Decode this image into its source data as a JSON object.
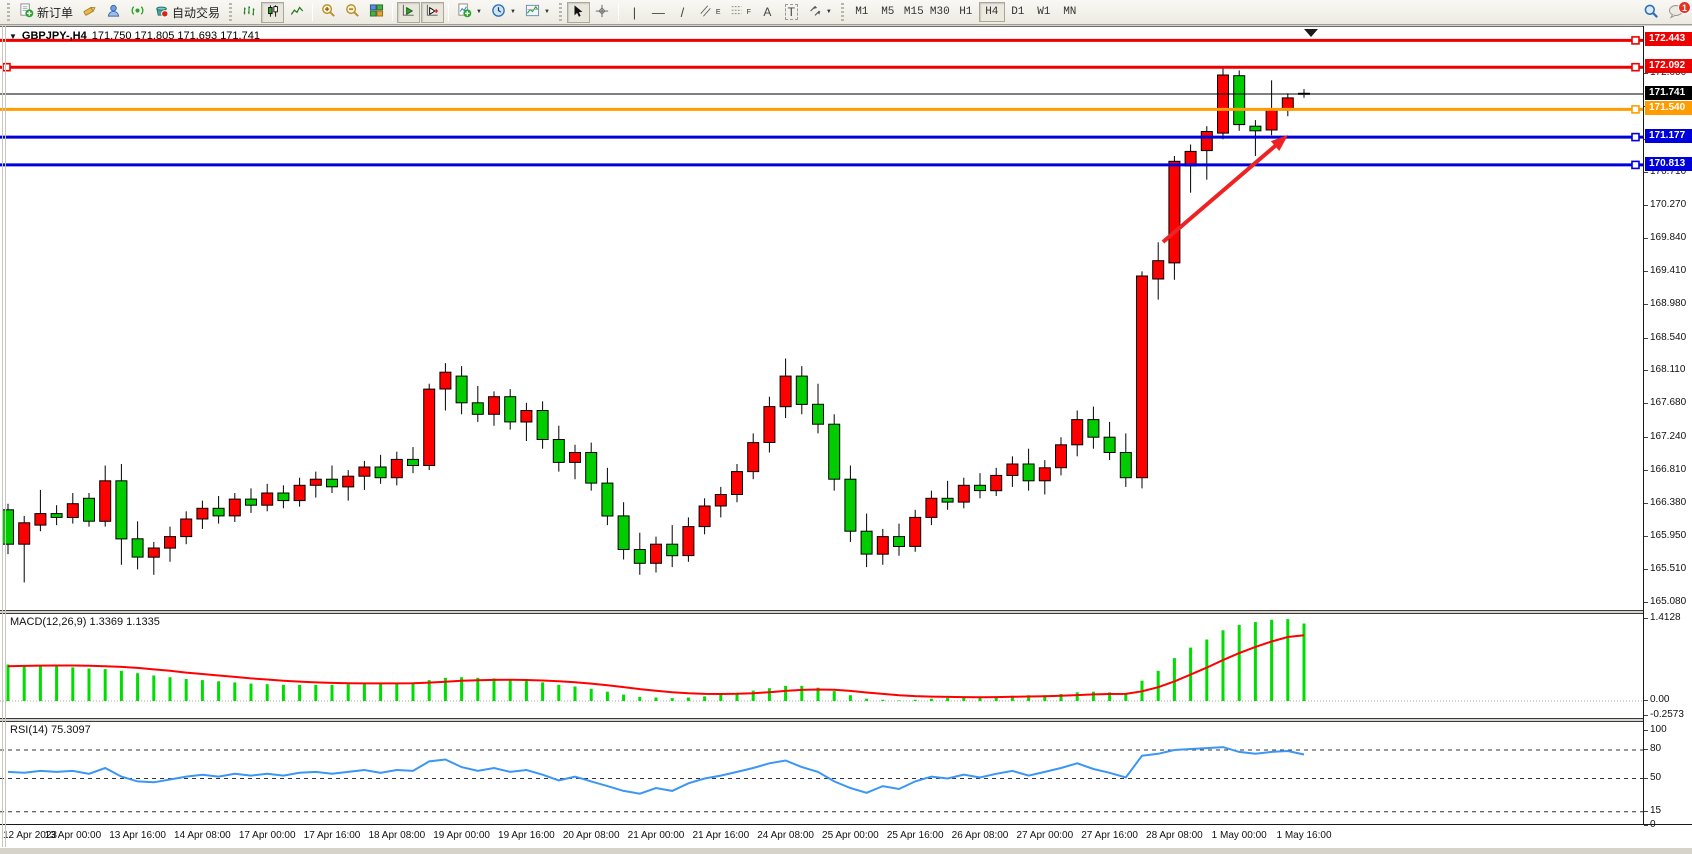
{
  "toolbar": {
    "new_order_label": "新订单",
    "autotrading_label": "自动交易",
    "timeframes": [
      "M1",
      "M5",
      "M15",
      "M30",
      "H1",
      "H4",
      "D1",
      "W1",
      "MN"
    ],
    "active_timeframe": "H4",
    "notification_badge": "1",
    "tools": {
      "vline": "|",
      "hline": "—",
      "trendline": "/",
      "text_tool": "A",
      "label_tool": "T",
      "channel_letter": "E",
      "fibo_letter": "F",
      "crosshair": "+"
    }
  },
  "chart_window": {
    "symbol_title": "GBPJPY-,H4",
    "ohlc_title": "171.750 171.805 171.693 171.741",
    "macd_label": "MACD(12,26,9) 1.3369 1.1335",
    "rsi_label": "RSI(14) 75.3097"
  },
  "chart_data": {
    "type": "candlestick",
    "symbol": "GBPJPY-",
    "timeframe": "H4",
    "current_ohlc": {
      "open": "171.750",
      "high": "171.805",
      "low": "171.693",
      "close": "171.741"
    },
    "up_color": "#ff0000",
    "down_color": "#00cc00",
    "price_ticks": [
      "172.000",
      "171.570",
      "171.140",
      "170.710",
      "170.270",
      "169.840",
      "169.410",
      "168.980",
      "168.540",
      "168.110",
      "167.680",
      "167.240",
      "166.810",
      "166.380",
      "165.950",
      "165.510",
      "165.080"
    ],
    "x_labels": [
      "12 Apr 2023",
      "13 Apr 00:00",
      "13 Apr 16:00",
      "14 Apr 08:00",
      "17 Apr 00:00",
      "17 Apr 16:00",
      "18 Apr 08:00",
      "19 Apr 00:00",
      "19 Apr 16:00",
      "20 Apr 08:00",
      "21 Apr 00:00",
      "21 Apr 16:00",
      "24 Apr 08:00",
      "25 Apr 00:00",
      "25 Apr 16:00",
      "26 Apr 08:00",
      "27 Apr 00:00",
      "27 Apr 16:00",
      "28 Apr 08:00",
      "1 May 00:00",
      "1 May 16:00"
    ],
    "hlines": [
      {
        "price": 172.443,
        "label": "172.443",
        "color": "#ee0000"
      },
      {
        "price": 172.092,
        "label": "172.092",
        "color": "#ee0000"
      },
      {
        "price": 171.54,
        "label": "171.540",
        "color": "#ff9c00"
      },
      {
        "price": 171.177,
        "label": "171.177",
        "color": "#0000dd"
      },
      {
        "price": 170.813,
        "label": "170.813",
        "color": "#0000dd"
      }
    ],
    "current_price": {
      "value": 171.741,
      "label": "171.741",
      "color": "#000000"
    },
    "candles": [
      [
        166.3,
        166.38,
        165.72,
        165.85
      ],
      [
        165.85,
        166.22,
        165.35,
        166.13
      ],
      [
        166.1,
        166.56,
        166.02,
        166.25
      ],
      [
        166.25,
        166.36,
        166.1,
        166.2
      ],
      [
        166.2,
        166.52,
        166.12,
        166.38
      ],
      [
        166.45,
        166.52,
        166.08,
        166.15
      ],
      [
        166.15,
        166.88,
        166.08,
        166.68
      ],
      [
        166.68,
        166.9,
        165.58,
        165.92
      ],
      [
        165.92,
        166.15,
        165.52,
        165.68
      ],
      [
        165.68,
        165.88,
        165.45,
        165.8
      ],
      [
        165.8,
        166.08,
        165.62,
        165.95
      ],
      [
        165.95,
        166.28,
        165.85,
        166.18
      ],
      [
        166.18,
        166.42,
        166.05,
        166.32
      ],
      [
        166.32,
        166.48,
        166.12,
        166.22
      ],
      [
        166.22,
        166.52,
        166.14,
        166.44
      ],
      [
        166.44,
        166.58,
        166.26,
        166.36
      ],
      [
        166.36,
        166.64,
        166.28,
        166.52
      ],
      [
        166.52,
        166.62,
        166.32,
        166.42
      ],
      [
        166.42,
        166.72,
        166.34,
        166.62
      ],
      [
        166.62,
        166.8,
        166.46,
        166.7
      ],
      [
        166.7,
        166.88,
        166.52,
        166.6
      ],
      [
        166.6,
        166.82,
        166.42,
        166.74
      ],
      [
        166.74,
        166.94,
        166.56,
        166.86
      ],
      [
        166.86,
        167.02,
        166.64,
        166.72
      ],
      [
        166.72,
        167.06,
        166.62,
        166.96
      ],
      [
        166.96,
        167.12,
        166.78,
        166.88
      ],
      [
        166.88,
        167.95,
        166.82,
        167.88
      ],
      [
        167.88,
        168.22,
        167.6,
        168.1
      ],
      [
        168.05,
        168.18,
        167.55,
        167.7
      ],
      [
        167.7,
        167.92,
        167.45,
        167.55
      ],
      [
        167.55,
        167.85,
        167.4,
        167.78
      ],
      [
        167.78,
        167.88,
        167.35,
        167.45
      ],
      [
        167.45,
        167.7,
        167.2,
        167.6
      ],
      [
        167.6,
        167.72,
        167.1,
        167.22
      ],
      [
        167.22,
        167.4,
        166.8,
        166.92
      ],
      [
        166.92,
        167.15,
        166.7,
        167.05
      ],
      [
        167.05,
        167.18,
        166.55,
        166.65
      ],
      [
        166.65,
        166.85,
        166.1,
        166.22
      ],
      [
        166.22,
        166.4,
        165.65,
        165.78
      ],
      [
        165.78,
        166.0,
        165.45,
        165.6
      ],
      [
        165.6,
        165.95,
        165.48,
        165.85
      ],
      [
        165.85,
        166.1,
        165.55,
        165.7
      ],
      [
        165.7,
        166.2,
        165.62,
        166.08
      ],
      [
        166.08,
        166.45,
        165.98,
        166.35
      ],
      [
        166.35,
        166.6,
        166.2,
        166.5
      ],
      [
        166.5,
        166.9,
        166.4,
        166.8
      ],
      [
        166.8,
        167.3,
        166.7,
        167.18
      ],
      [
        167.18,
        167.78,
        167.05,
        167.65
      ],
      [
        167.65,
        168.28,
        167.5,
        168.05
      ],
      [
        168.05,
        168.18,
        167.55,
        167.68
      ],
      [
        167.68,
        167.95,
        167.3,
        167.42
      ],
      [
        167.42,
        167.55,
        166.55,
        166.7
      ],
      [
        166.7,
        166.88,
        165.88,
        166.02
      ],
      [
        166.02,
        166.25,
        165.55,
        165.72
      ],
      [
        165.72,
        166.05,
        165.58,
        165.95
      ],
      [
        165.95,
        166.12,
        165.7,
        165.82
      ],
      [
        165.82,
        166.3,
        165.75,
        166.2
      ],
      [
        166.2,
        166.55,
        166.1,
        166.45
      ],
      [
        166.45,
        166.68,
        166.3,
        166.4
      ],
      [
        166.4,
        166.72,
        166.32,
        166.62
      ],
      [
        166.62,
        166.78,
        166.45,
        166.55
      ],
      [
        166.55,
        166.85,
        166.48,
        166.75
      ],
      [
        166.75,
        167.0,
        166.6,
        166.9
      ],
      [
        166.9,
        167.1,
        166.55,
        166.68
      ],
      [
        166.68,
        166.95,
        166.5,
        166.85
      ],
      [
        166.85,
        167.25,
        166.75,
        167.15
      ],
      [
        167.15,
        167.6,
        167.0,
        167.48
      ],
      [
        167.48,
        167.65,
        167.1,
        167.25
      ],
      [
        167.25,
        167.45,
        166.95,
        167.05
      ],
      [
        167.05,
        167.3,
        166.6,
        166.72
      ],
      [
        166.72,
        169.42,
        166.58,
        169.36
      ],
      [
        169.32,
        169.8,
        169.05,
        169.56
      ],
      [
        169.53,
        170.93,
        169.31,
        170.86
      ],
      [
        170.8,
        171.08,
        170.45,
        170.99
      ],
      [
        171.0,
        171.32,
        170.62,
        171.25
      ],
      [
        171.23,
        172.1,
        171.15,
        171.99
      ],
      [
        171.98,
        172.05,
        171.26,
        171.34
      ],
      [
        171.32,
        171.4,
        170.93,
        171.26
      ],
      [
        171.27,
        171.92,
        171.2,
        171.53
      ],
      [
        171.53,
        171.75,
        171.45,
        171.69
      ],
      [
        171.75,
        171.805,
        171.693,
        171.741
      ]
    ],
    "macd": {
      "label": "MACD(12,26,9) 1.3369 1.1335",
      "main_value": "1.3369",
      "signal_value": "1.1335",
      "hist_color": "#00dd00",
      "signal_color": "#ff0000",
      "axis": [
        {
          "v": 1.4128,
          "label": "1.4128"
        },
        {
          "v": 0,
          "label": "0.00"
        },
        {
          "v": -0.2573,
          "label": "-0.2573"
        }
      ],
      "histogram": [
        0.63,
        0.62,
        0.61,
        0.6,
        0.58,
        0.56,
        0.55,
        0.52,
        0.48,
        0.44,
        0.41,
        0.38,
        0.36,
        0.34,
        0.32,
        0.3,
        0.29,
        0.28,
        0.28,
        0.28,
        0.28,
        0.29,
        0.3,
        0.3,
        0.31,
        0.32,
        0.36,
        0.4,
        0.41,
        0.4,
        0.39,
        0.37,
        0.35,
        0.32,
        0.28,
        0.25,
        0.21,
        0.16,
        0.11,
        0.07,
        0.06,
        0.05,
        0.06,
        0.08,
        0.11,
        0.14,
        0.18,
        0.22,
        0.26,
        0.26,
        0.23,
        0.17,
        0.1,
        0.04,
        0.02,
        0.01,
        0.02,
        0.04,
        0.05,
        0.06,
        0.06,
        0.07,
        0.09,
        0.1,
        0.1,
        0.12,
        0.15,
        0.16,
        0.15,
        0.13,
        0.35,
        0.52,
        0.74,
        0.92,
        1.06,
        1.22,
        1.31,
        1.36,
        1.4,
        1.4128,
        1.3369
      ],
      "signal": [
        0.6,
        0.605,
        0.61,
        0.612,
        0.612,
        0.608,
        0.6,
        0.588,
        0.57,
        0.545,
        0.52,
        0.49,
        0.465,
        0.44,
        0.415,
        0.39,
        0.37,
        0.35,
        0.335,
        0.32,
        0.312,
        0.307,
        0.304,
        0.303,
        0.304,
        0.307,
        0.317,
        0.333,
        0.348,
        0.358,
        0.364,
        0.365,
        0.362,
        0.354,
        0.34,
        0.322,
        0.3,
        0.272,
        0.24,
        0.206,
        0.177,
        0.152,
        0.133,
        0.122,
        0.12,
        0.124,
        0.135,
        0.152,
        0.174,
        0.191,
        0.199,
        0.193,
        0.174,
        0.147,
        0.122,
        0.1,
        0.084,
        0.075,
        0.07,
        0.068,
        0.066,
        0.067,
        0.072,
        0.077,
        0.082,
        0.09,
        0.102,
        0.114,
        0.121,
        0.123,
        0.168,
        0.238,
        0.338,
        0.455,
        0.576,
        0.705,
        0.826,
        0.933,
        1.026,
        1.103,
        1.1335
      ]
    },
    "rsi": {
      "label": "RSI(14) 75.3097",
      "value": "75.3097",
      "color": "#3b96f5",
      "levels": [
        80,
        50,
        15
      ],
      "axis": [
        {
          "v": 100,
          "label": "100"
        },
        {
          "v": 80,
          "label": "80"
        },
        {
          "v": 50,
          "label": "50"
        },
        {
          "v": 15,
          "label": "15"
        },
        {
          "v": 0,
          "label": "0"
        }
      ],
      "values": [
        57,
        56,
        58,
        57,
        58,
        55,
        61,
        52,
        47,
        46,
        49,
        52,
        54,
        52,
        55,
        53,
        55,
        53,
        56,
        57,
        55,
        57,
        59,
        56,
        59,
        58,
        68,
        70,
        62,
        58,
        61,
        57,
        59,
        54,
        48,
        52,
        47,
        42,
        37,
        34,
        40,
        37,
        45,
        50,
        53,
        57,
        61,
        66,
        69,
        62,
        57,
        47,
        40,
        35,
        42,
        39,
        47,
        52,
        50,
        54,
        51,
        55,
        58,
        53,
        57,
        61,
        66,
        60,
        56,
        51,
        74,
        76,
        80,
        81,
        82,
        83,
        78,
        76,
        78,
        79,
        75.3097
      ]
    },
    "annotation_arrow": {
      "color": "#ee2222",
      "from": [
        1163,
        241
      ],
      "to": [
        1288,
        134
      ]
    }
  }
}
